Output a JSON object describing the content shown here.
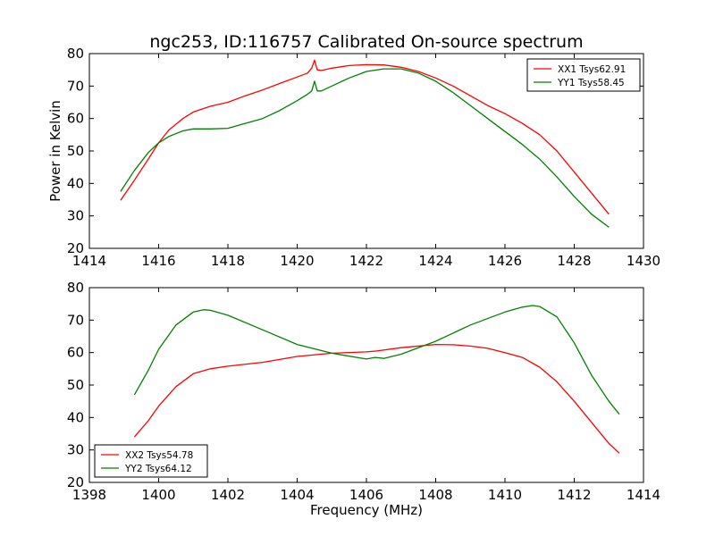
{
  "figure": {
    "title": "ngc253, ID:116757 Calibrated On-source spectrum",
    "ylabel": "Power in Kelvin",
    "xlabel": "Frequency (MHz)"
  },
  "chart_data": [
    {
      "type": "line",
      "xlim": [
        1414,
        1430
      ],
      "ylim": [
        20,
        80
      ],
      "xticks": [
        1414,
        1416,
        1418,
        1420,
        1422,
        1424,
        1426,
        1428,
        1430
      ],
      "yticks": [
        20,
        30,
        40,
        50,
        60,
        70,
        80
      ],
      "legend": "top-right",
      "grid": false,
      "series": [
        {
          "name": "XX1 Tsys62.91",
          "color": "#ff0000",
          "x": [
            1414.9,
            1415.3,
            1415.7,
            1416.0,
            1416.3,
            1416.7,
            1417.0,
            1417.5,
            1418.0,
            1418.5,
            1419.0,
            1419.5,
            1420.0,
            1420.3,
            1420.42,
            1420.5,
            1420.58,
            1420.7,
            1421.0,
            1421.5,
            1422.0,
            1422.5,
            1423.0,
            1423.5,
            1424.0,
            1424.5,
            1425.0,
            1425.5,
            1426.0,
            1426.5,
            1427.0,
            1427.5,
            1428.0,
            1428.5,
            1429.0
          ],
          "y": [
            34.8,
            41.0,
            47.5,
            52.5,
            56.5,
            60.0,
            62.0,
            63.8,
            65.0,
            67.0,
            68.8,
            70.8,
            72.8,
            74.0,
            75.5,
            78.0,
            75.0,
            74.8,
            75.5,
            76.3,
            76.6,
            76.5,
            75.8,
            74.5,
            72.5,
            70.0,
            67.0,
            64.0,
            61.5,
            58.5,
            55.0,
            50.0,
            43.5,
            37.0,
            30.5
          ]
        },
        {
          "name": "YY1 Tsys58.45",
          "color": "#008000",
          "x": [
            1414.9,
            1415.3,
            1415.7,
            1416.0,
            1416.3,
            1416.7,
            1417.0,
            1417.5,
            1418.0,
            1418.5,
            1419.0,
            1419.5,
            1420.0,
            1420.3,
            1420.42,
            1420.5,
            1420.58,
            1420.7,
            1421.0,
            1421.5,
            1422.0,
            1422.5,
            1423.0,
            1423.5,
            1424.0,
            1424.5,
            1425.0,
            1425.5,
            1426.0,
            1426.5,
            1427.0,
            1427.5,
            1428.0,
            1428.5,
            1429.0
          ],
          "y": [
            37.5,
            44.0,
            49.5,
            52.5,
            54.5,
            56.2,
            56.8,
            56.8,
            57.0,
            58.5,
            60.0,
            62.5,
            65.5,
            67.5,
            68.5,
            71.5,
            68.5,
            68.5,
            70.0,
            72.5,
            74.5,
            75.3,
            75.3,
            74.0,
            71.5,
            68.0,
            64.0,
            60.0,
            56.0,
            52.0,
            47.5,
            42.0,
            36.0,
            30.5,
            26.5
          ]
        }
      ]
    },
    {
      "type": "line",
      "xlim": [
        1398,
        1414
      ],
      "ylim": [
        20,
        80
      ],
      "xticks": [
        1398,
        1400,
        1402,
        1404,
        1406,
        1408,
        1410,
        1412,
        1414
      ],
      "yticks": [
        20,
        30,
        40,
        50,
        60,
        70,
        80
      ],
      "legend": "bottom-left",
      "grid": false,
      "series": [
        {
          "name": "XX2 Tsys54.78",
          "color": "#ff0000",
          "x": [
            1399.3,
            1399.7,
            1400.0,
            1400.5,
            1401.0,
            1401.5,
            1402.0,
            1403.0,
            1404.0,
            1405.0,
            1406.0,
            1406.3,
            1407.0,
            1408.0,
            1408.5,
            1409.0,
            1409.5,
            1410.0,
            1410.5,
            1411.0,
            1411.5,
            1412.0,
            1412.5,
            1413.0,
            1413.3
          ],
          "y": [
            34.0,
            39.0,
            43.5,
            49.5,
            53.5,
            55.0,
            55.8,
            57.0,
            58.8,
            59.8,
            60.2,
            60.5,
            61.5,
            62.5,
            62.4,
            62.0,
            61.3,
            60.0,
            58.5,
            55.5,
            51.0,
            45.0,
            38.5,
            32.0,
            29.0
          ]
        },
        {
          "name": "YY2 Tsys64.12",
          "color": "#008000",
          "x": [
            1399.3,
            1399.7,
            1400.0,
            1400.5,
            1401.0,
            1401.3,
            1401.5,
            1402.0,
            1403.0,
            1404.0,
            1405.0,
            1406.0,
            1406.25,
            1406.5,
            1407.0,
            1408.0,
            1409.0,
            1410.0,
            1410.5,
            1410.8,
            1411.0,
            1411.5,
            1412.0,
            1412.5,
            1413.0,
            1413.3
          ],
          "y": [
            47.0,
            54.5,
            61.0,
            68.5,
            72.5,
            73.2,
            73.0,
            71.5,
            67.0,
            62.5,
            59.8,
            58.0,
            58.5,
            58.2,
            59.5,
            63.5,
            68.5,
            72.5,
            74.0,
            74.5,
            74.2,
            71.0,
            63.0,
            53.0,
            45.0,
            41.0
          ]
        }
      ]
    }
  ]
}
